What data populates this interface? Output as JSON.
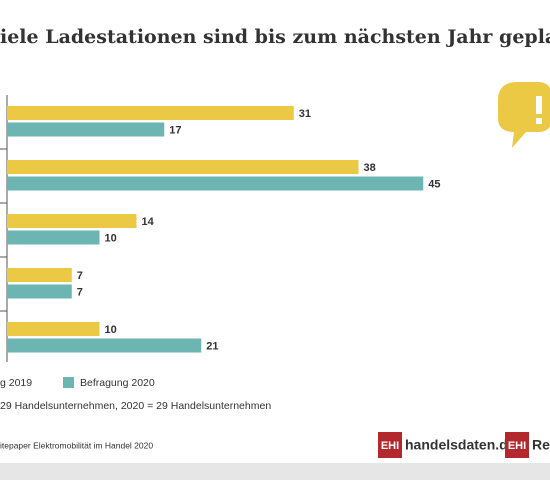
{
  "chart_data": {
    "type": "bar",
    "orientation": "horizontal",
    "title": "iele Ladestationen sind bis zum nächsten Jahr gepla",
    "categories": [
      null,
      null,
      null,
      null,
      null
    ],
    "series": [
      {
        "name": "g 2019",
        "color": "#ebc944",
        "values": [
          31,
          38,
          14,
          7,
          10
        ]
      },
      {
        "name": "Befragung 2020",
        "color": "#6db5b3",
        "values": [
          17,
          45,
          10,
          7,
          21
        ]
      }
    ],
    "footnote": "29 Handelsunternehmen, 2020 = 29 Handelsunternehmen",
    "source": "itepaper Elektromobilität im Handel 2020",
    "logo1_brand": "EHI",
    "logo1_text": "handelsdaten.de",
    "logo2_brand": "EHI",
    "logo2_text": "Ret"
  }
}
